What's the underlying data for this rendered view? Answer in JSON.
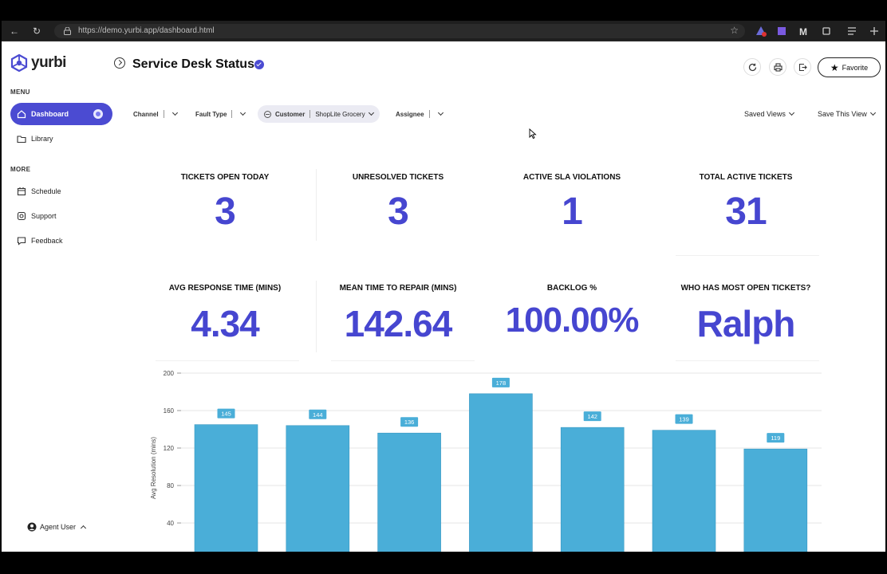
{
  "browser": {
    "url": "https://demo.yurbi.app/dashboard.html"
  },
  "app": {
    "logo_text": "yurbi",
    "title": "Service Desk Status"
  },
  "sidebar": {
    "menu_heading": "MENU",
    "more_heading": "MORE",
    "menu_items": [
      {
        "label": "Dashboard",
        "icon": "home-icon",
        "active": true
      },
      {
        "label": "Library",
        "icon": "folder-icon",
        "active": false
      }
    ],
    "more_items": [
      {
        "label": "Schedule",
        "icon": "calendar-icon"
      },
      {
        "label": "Support",
        "icon": "support-icon"
      },
      {
        "label": "Feedback",
        "icon": "feedback-icon"
      }
    ],
    "user_label": "Agent User"
  },
  "header": {
    "favorite_label": "Favorite",
    "saved_views_label": "Saved Views",
    "save_view_label": "Save This View"
  },
  "filters": {
    "channel": "Channel",
    "fault_type": "Fault Type",
    "customer_label": "Customer",
    "customer_value": "ShopLite Grocery",
    "assignee": "Assignee"
  },
  "kpis": [
    {
      "label": "TICKETS OPEN TODAY",
      "value": "3"
    },
    {
      "label": "UNRESOLVED TICKETS",
      "value": "3"
    },
    {
      "label": "ACTIVE SLA VIOLATIONS",
      "value": "1"
    },
    {
      "label": "TOTAL ACTIVE TICKETS",
      "value": "31"
    },
    {
      "label": "AVG RESPONSE TIME (MINS)",
      "value": "4.34"
    },
    {
      "label": "MEAN TIME TO REPAIR (MINS)",
      "value": "142.64"
    },
    {
      "label": "BACKLOG %",
      "value": "100.00%"
    },
    {
      "label": "WHO HAS MOST OPEN TICKETS?",
      "value": "Ralph"
    }
  ],
  "colors": {
    "accent": "#4b4bd2",
    "kpi_value": "#4646d0",
    "bar": "#4aaed8"
  },
  "chart_data": {
    "type": "bar",
    "ylabel": "Avg Resolution (mins)",
    "ylim": [
      0,
      200
    ],
    "yticks": [
      40,
      80,
      120,
      160,
      200
    ],
    "grid": true,
    "values": [
      145,
      144,
      136,
      178,
      142,
      139,
      119
    ],
    "labels": [
      "145",
      "144",
      "136",
      "178",
      "142",
      "139",
      "119"
    ]
  }
}
